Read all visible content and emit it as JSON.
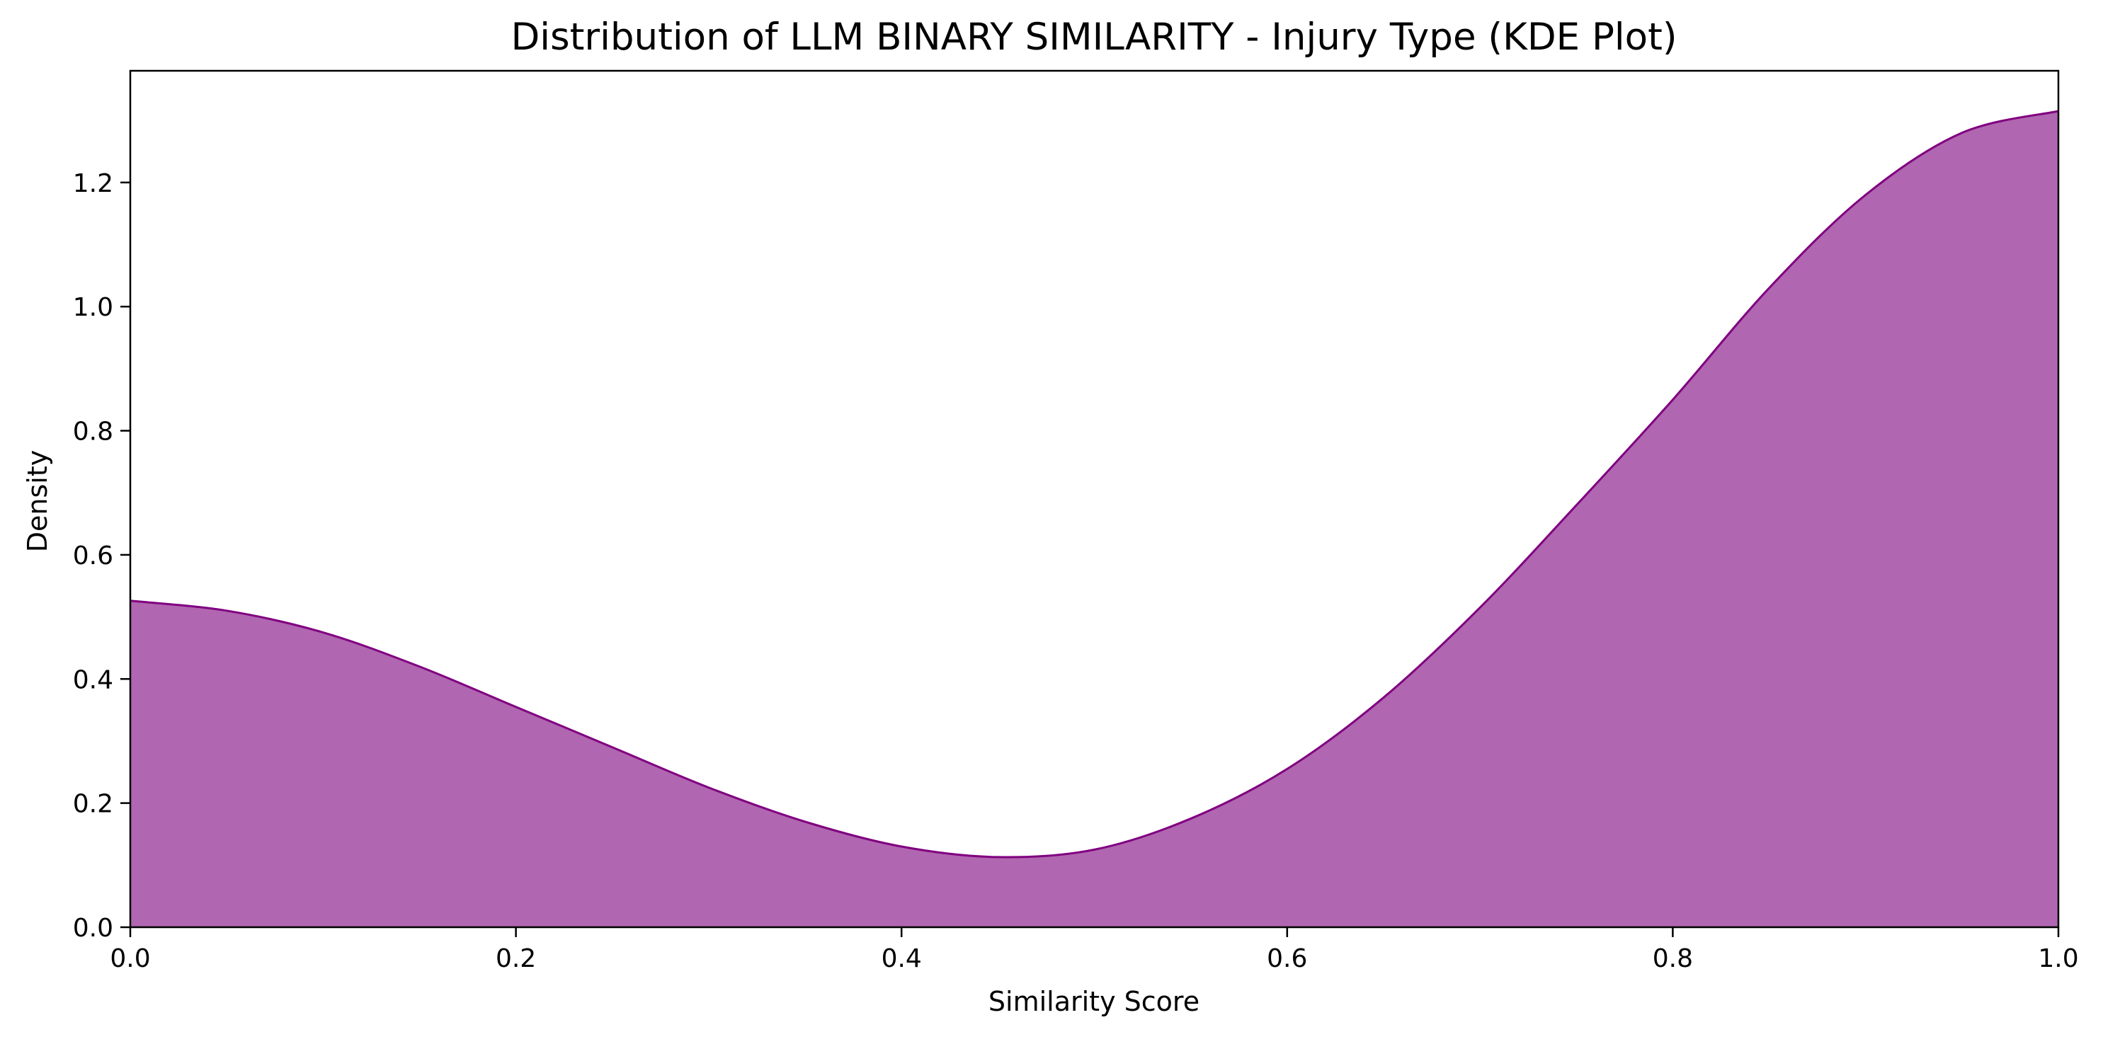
{
  "chart_data": {
    "type": "area",
    "title": "Distribution of LLM BINARY SIMILARITY - Injury Type (KDE Plot)",
    "xlabel": "Similarity Score",
    "ylabel": "Density",
    "xlim": [
      0.0,
      1.0
    ],
    "ylim": [
      0.0,
      1.38
    ],
    "x_ticks": [
      "0.0",
      "0.2",
      "0.4",
      "0.6",
      "0.8",
      "1.0"
    ],
    "y_ticks": [
      "0.0",
      "0.2",
      "0.4",
      "0.6",
      "0.8",
      "1.0",
      "1.2"
    ],
    "grid": false,
    "legend": false,
    "fill_color": "#b066b0",
    "line_color": "#800080",
    "series": [
      {
        "x": [
          0.0,
          0.05,
          0.1,
          0.15,
          0.2,
          0.25,
          0.3,
          0.35,
          0.4,
          0.45,
          0.5,
          0.55,
          0.6,
          0.65,
          0.7,
          0.75,
          0.8,
          0.85,
          0.9,
          0.95,
          1.0
        ],
        "values": [
          0.526,
          0.51,
          0.475,
          0.42,
          0.355,
          0.29,
          0.225,
          0.17,
          0.13,
          0.113,
          0.125,
          0.175,
          0.255,
          0.37,
          0.515,
          0.68,
          0.85,
          1.03,
          1.18,
          1.28,
          1.315
        ]
      }
    ]
  }
}
